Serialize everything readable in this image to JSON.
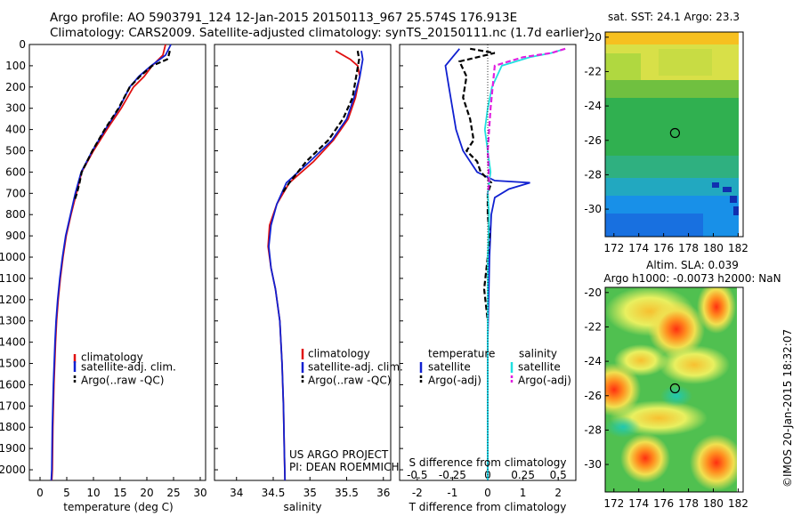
{
  "header": {
    "line1": "Argo profile: AO 5903791_124 12-Jan-2015 20150113_967 25.574S 176.913E",
    "line2": "Climatology: CARS2009. Satellite-adjusted climatology: synTS_20150111.nc (1.7d earlier)"
  },
  "credit": {
    "line1": "US ARGO PROJECT",
    "line2": "PI: DEAN ROEMMICH"
  },
  "stamp": "©IMOS 20-Jan-2015 18:32:07",
  "colors": {
    "climatology": "#e01010",
    "satellite": "#1020d0",
    "argo": "#000000",
    "satellite_s": "#20e0e0",
    "argo_s_adj": "#e020e0"
  },
  "chart_data": [
    {
      "type": "line",
      "xlabel": "temperature (deg C)",
      "ylabel": "",
      "xlim": [
        -2,
        31
      ],
      "ylim": [
        2050,
        0
      ],
      "xticks": [
        0,
        5,
        10,
        15,
        20,
        25,
        30
      ],
      "yticks": [
        0,
        100,
        200,
        300,
        400,
        500,
        600,
        700,
        800,
        900,
        1000,
        1100,
        1200,
        1300,
        1400,
        1500,
        1600,
        1700,
        1800,
        1900,
        2000
      ],
      "legend": [
        "climatology",
        "satellite-adj. clim.",
        "Argo(..raw -QC)"
      ],
      "series": [
        {
          "name": "climatology",
          "color": "#e01010",
          "dash": "none",
          "x": [
            23.5,
            23.0,
            21.0,
            19.5,
            17.5,
            15.2,
            12.5,
            10.0,
            7.8,
            6.8,
            5.8,
            4.9,
            4.3,
            3.8,
            3.4,
            3.1,
            2.9,
            2.6,
            2.4,
            2.3,
            2.2
          ],
          "y": [
            0,
            50,
            100,
            150,
            200,
            300,
            400,
            500,
            600,
            700,
            800,
            900,
            1000,
            1100,
            1200,
            1300,
            1400,
            1600,
            1800,
            2000,
            2050
          ]
        },
        {
          "name": "satellite-adj. clim.",
          "color": "#1020d0",
          "dash": "none",
          "x": [
            24.5,
            23.5,
            20.8,
            18.5,
            16.8,
            14.8,
            12.2,
            9.8,
            7.7,
            6.6,
            5.7,
            4.8,
            4.2,
            3.7,
            3.3,
            3.0,
            2.8,
            2.5,
            2.3,
            2.2,
            2.1
          ],
          "y": [
            0,
            50,
            100,
            150,
            200,
            300,
            400,
            500,
            600,
            700,
            800,
            900,
            1000,
            1100,
            1200,
            1300,
            1400,
            1600,
            1800,
            2000,
            2050
          ]
        },
        {
          "name": "Argo(..raw -QC)",
          "color": "#000000",
          "dash": "6,3",
          "x": [
            24.3,
            24.1,
            23.8,
            21.0,
            18.7,
            16.8,
            14.7,
            12.1,
            9.8,
            7.8,
            7.4,
            6.9,
            6.5
          ],
          "y": [
            30,
            50,
            70,
            100,
            150,
            200,
            300,
            400,
            500,
            600,
            650,
            700,
            730
          ]
        }
      ]
    },
    {
      "type": "line",
      "xlabel": "salinity",
      "ylabel": "",
      "xlim": [
        33.7,
        36.1
      ],
      "ylim": [
        2050,
        0
      ],
      "xticks": [
        34,
        34.5,
        35,
        35.5,
        36
      ],
      "xticklabels": [
        "34",
        "34.5",
        "35",
        "35.5",
        "36"
      ],
      "legend": [
        "climatology",
        "satellite-adj. clim.",
        "Argo(..raw -QC)"
      ],
      "series": [
        {
          "name": "climatology",
          "color": "#e01010",
          "dash": "none",
          "x": [
            35.35,
            35.55,
            35.65,
            35.68,
            35.62,
            35.52,
            35.32,
            35.05,
            34.72,
            34.55,
            34.45,
            34.43,
            34.47,
            34.53,
            34.59,
            34.62,
            34.64,
            34.65,
            34.66
          ],
          "y": [
            30,
            70,
            100,
            150,
            250,
            350,
            450,
            550,
            650,
            750,
            850,
            950,
            1050,
            1150,
            1300,
            1500,
            1700,
            1900,
            2050
          ]
        },
        {
          "name": "satellite-adj. clim.",
          "color": "#1020d0",
          "dash": "none",
          "x": [
            35.7,
            35.72,
            35.68,
            35.6,
            35.5,
            35.3,
            35.0,
            34.68,
            34.55,
            34.47,
            34.44,
            34.47,
            34.53,
            34.59,
            34.62,
            34.64,
            34.65,
            34.66
          ],
          "y": [
            30,
            70,
            150,
            250,
            350,
            450,
            550,
            650,
            750,
            850,
            950,
            1050,
            1150,
            1300,
            1500,
            1700,
            1900,
            2050
          ]
        },
        {
          "name": "Argo(..raw -QC)",
          "color": "#000000",
          "dash": "6,3",
          "x": [
            35.65,
            35.67,
            35.63,
            35.58,
            35.45,
            35.25,
            34.95,
            34.72,
            34.62
          ],
          "y": [
            30,
            70,
            150,
            250,
            350,
            450,
            550,
            650,
            700
          ]
        }
      ]
    },
    {
      "type": "line",
      "xlabel": "T difference from climatology",
      "x2label": "S difference from climatology",
      "ylabel": "",
      "xlim": [
        -2.5,
        2.5
      ],
      "x2lim": [
        -0.625,
        0.625
      ],
      "ylim": [
        2050,
        0
      ],
      "xticks": [
        -2,
        -1,
        0,
        1,
        2
      ],
      "x2ticks": [
        -0.5,
        -0.25,
        0,
        0.25,
        0.5
      ],
      "x2ticklabels": [
        "-0.5",
        "-0.25",
        "0",
        "0.25",
        "0.5"
      ],
      "legend_headers": [
        "temperature",
        "salinity"
      ],
      "legend": [
        "satellite",
        "Argo(-adj)",
        "satellite",
        "Argo(-adj)"
      ],
      "series": [
        {
          "name": "satellite",
          "color": "#1020d0",
          "dash": "none",
          "axis": "T",
          "x": [
            -0.8,
            -1.0,
            -1.2,
            -1.1,
            -1.0,
            -0.9,
            -0.8,
            -0.7,
            -0.5,
            -0.3,
            0.2,
            1.2,
            0.6,
            0.2,
            0.1,
            0.05,
            0.0,
            0.0,
            0.0
          ],
          "y": [
            20,
            60,
            100,
            200,
            300,
            400,
            450,
            500,
            550,
            600,
            640,
            650,
            680,
            720,
            800,
            1000,
            1400,
            1800,
            2050
          ]
        },
        {
          "name": "Argo(-adj)",
          "color": "#000000",
          "dash": "6,3",
          "axis": "T",
          "x": [
            -0.5,
            0.2,
            -0.8,
            -0.6,
            -0.7,
            -0.5,
            -0.4,
            -0.6,
            -0.3,
            -0.2,
            0.1,
            0.0,
            0.0,
            0.05,
            0.0,
            -0.1,
            0.0
          ],
          "y": [
            20,
            40,
            80,
            150,
            250,
            350,
            450,
            500,
            550,
            600,
            650,
            700,
            800,
            900,
            1000,
            1150,
            1300
          ]
        },
        {
          "name": "satellite",
          "color": "#20e0e0",
          "dash": "none",
          "axis": "S",
          "x": [
            0.55,
            0.45,
            0.3,
            0.1,
            0.03,
            0.0,
            -0.02,
            0.0,
            0.02,
            0.0,
            0.01,
            0.0,
            0.0,
            0.0
          ],
          "y": [
            20,
            40,
            60,
            100,
            200,
            300,
            400,
            500,
            600,
            700,
            800,
            1000,
            1500,
            2050
          ]
        },
        {
          "name": "Argo(-adj)",
          "color": "#e020e0",
          "dash": "6,3",
          "axis": "S",
          "x": [
            0.55,
            0.45,
            0.25,
            0.05,
            0.02,
            0.0,
            0.01,
            0.0
          ],
          "y": [
            20,
            40,
            60,
            100,
            300,
            500,
            650,
            700
          ]
        }
      ]
    },
    {
      "type": "heatmap",
      "title": "sat. SST: 24.1  Argo: 23.3",
      "xlim": [
        171.3,
        182.4
      ],
      "ylim": [
        -31.6,
        -19.7
      ],
      "xticks": [
        172,
        174,
        176,
        178,
        180,
        182
      ],
      "yticks": [
        -20,
        -22,
        -24,
        -26,
        -28,
        -30
      ],
      "marker": {
        "x": 176.913,
        "y": -25.574
      }
    },
    {
      "type": "heatmap",
      "title": "Altim. SLA: 0.039",
      "subtitle": "Argo h1000: -0.0073  h2000: NaN",
      "xlim": [
        171.3,
        182.4
      ],
      "ylim": [
        -31.6,
        -19.7
      ],
      "xticks": [
        172,
        174,
        176,
        178,
        180,
        182
      ],
      "yticks": [
        -20,
        -22,
        -24,
        -26,
        -28,
        -30
      ],
      "marker": {
        "x": 176.913,
        "y": -25.574
      }
    }
  ]
}
